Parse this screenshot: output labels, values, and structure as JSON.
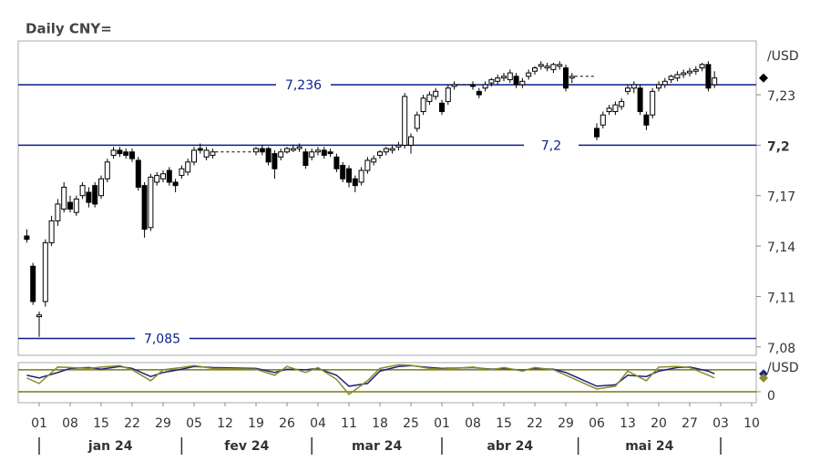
{
  "chart_data": {
    "type": "candlestick",
    "title": "Daily CNY=",
    "unit": "/USD",
    "ylim": [
      7.075,
      7.262
    ],
    "yticks": [
      {
        "value": 7.08,
        "label": "7,08"
      },
      {
        "value": 7.11,
        "label": "7,11"
      },
      {
        "value": 7.14,
        "label": "7,14"
      },
      {
        "value": 7.17,
        "label": "7,17"
      },
      {
        "value": 7.2,
        "label": "7,2",
        "bold": true
      },
      {
        "value": 7.23,
        "label": "7,23"
      }
    ],
    "lines": [
      {
        "value": 7.236,
        "label": "7,236"
      },
      {
        "value": 7.2,
        "label": "7,2"
      },
      {
        "value": 7.085,
        "label": "7,085"
      }
    ],
    "line_color": "#0b1e8c",
    "up_color": "#ffffff",
    "down_color": "#000000",
    "x": [
      "2023-12-28",
      "2023-12-29",
      "2024-01-01",
      "2024-01-02",
      "2024-01-03",
      "2024-01-04",
      "2024-01-05",
      "2024-01-08",
      "2024-01-09",
      "2024-01-10",
      "2024-01-11",
      "2024-01-12",
      "2024-01-15",
      "2024-01-16",
      "2024-01-17",
      "2024-01-18",
      "2024-01-19",
      "2024-01-22",
      "2024-01-23",
      "2024-01-24",
      "2024-01-25",
      "2024-01-26",
      "2024-01-29",
      "2024-01-30",
      "2024-01-31",
      "2024-02-01",
      "2024-02-02",
      "2024-02-05",
      "2024-02-06",
      "2024-02-07",
      "2024-02-08",
      "2024-02-09",
      "2024-02-12",
      "2024-02-13",
      "2024-02-14",
      "2024-02-15",
      "2024-02-16",
      "2024-02-19",
      "2024-02-20",
      "2024-02-21",
      "2024-02-22",
      "2024-02-23",
      "2024-02-26",
      "2024-02-27",
      "2024-02-28",
      "2024-02-29",
      "2024-03-01",
      "2024-03-04",
      "2024-03-05",
      "2024-03-06",
      "2024-03-07",
      "2024-03-08",
      "2024-03-11",
      "2024-03-12",
      "2024-03-13",
      "2024-03-14",
      "2024-03-15",
      "2024-03-18",
      "2024-03-19",
      "2024-03-20",
      "2024-03-21",
      "2024-03-22",
      "2024-03-25",
      "2024-03-26",
      "2024-03-27",
      "2024-03-28",
      "2024-03-29",
      "2024-04-01",
      "2024-04-02",
      "2024-04-03",
      "2024-04-04",
      "2024-04-05",
      "2024-04-08",
      "2024-04-09",
      "2024-04-10",
      "2024-04-11",
      "2024-04-12",
      "2024-04-15",
      "2024-04-16",
      "2024-04-17",
      "2024-04-18",
      "2024-04-19",
      "2024-04-22",
      "2024-04-23",
      "2024-04-24",
      "2024-04-25",
      "2024-04-26",
      "2024-04-29",
      "2024-04-30",
      "2024-05-01",
      "2024-05-02",
      "2024-05-03",
      "2024-05-06",
      "2024-05-07",
      "2024-05-08",
      "2024-05-09",
      "2024-05-10",
      "2024-05-13",
      "2024-05-14",
      "2024-05-15",
      "2024-05-16",
      "2024-05-17",
      "2024-05-20",
      "2024-05-21",
      "2024-05-22",
      "2024-05-23",
      "2024-05-24",
      "2024-05-27",
      "2024-05-28",
      "2024-05-29",
      "2024-05-30",
      "2024-05-31"
    ],
    "ohlc": [
      [
        7.146,
        7.15,
        7.142,
        7.144
      ],
      [
        7.128,
        7.13,
        7.105,
        7.107
      ],
      [
        7.098,
        7.101,
        7.086,
        7.099
      ],
      [
        7.107,
        7.144,
        7.104,
        7.142
      ],
      [
        7.142,
        7.158,
        7.14,
        7.155
      ],
      [
        7.155,
        7.168,
        7.152,
        7.165
      ],
      [
        7.162,
        7.178,
        7.16,
        7.175
      ],
      [
        7.166,
        7.17,
        7.16,
        7.162
      ],
      [
        7.16,
        7.17,
        7.158,
        7.168
      ],
      [
        7.17,
        7.178,
        7.168,
        7.176
      ],
      [
        7.172,
        7.175,
        7.163,
        7.166
      ],
      [
        7.176,
        7.178,
        7.163,
        7.165
      ],
      [
        7.17,
        7.182,
        7.168,
        7.18
      ],
      [
        7.18,
        7.192,
        7.178,
        7.19
      ],
      [
        7.194,
        7.199,
        7.192,
        7.197
      ],
      [
        7.197,
        7.199,
        7.193,
        7.195
      ],
      [
        7.196,
        7.198,
        7.192,
        7.194
      ],
      [
        7.196,
        7.198,
        7.19,
        7.192
      ],
      [
        7.191,
        7.193,
        7.173,
        7.175
      ],
      [
        7.176,
        7.178,
        7.145,
        7.15
      ],
      [
        7.151,
        7.183,
        7.149,
        7.181
      ],
      [
        7.178,
        7.184,
        7.176,
        7.182
      ],
      [
        7.18,
        7.185,
        7.178,
        7.183
      ],
      [
        7.185,
        7.187,
        7.176,
        7.178
      ],
      [
        7.178,
        7.18,
        7.172,
        7.176
      ],
      [
        7.182,
        7.188,
        7.18,
        7.186
      ],
      [
        7.184,
        7.192,
        7.182,
        7.19
      ],
      [
        7.19,
        7.199,
        7.188,
        7.197
      ],
      [
        7.198,
        7.201,
        7.195,
        7.197
      ],
      [
        7.193,
        7.199,
        7.191,
        7.197
      ],
      [
        7.194,
        7.198,
        7.192,
        7.196
      ],
      null,
      null,
      null,
      null,
      null,
      null,
      [
        7.196,
        7.199,
        7.194,
        7.198
      ],
      [
        7.198,
        7.2,
        7.194,
        7.196
      ],
      [
        7.198,
        7.199,
        7.188,
        7.19
      ],
      [
        7.195,
        7.197,
        7.18,
        7.186
      ],
      [
        7.193,
        7.198,
        7.191,
        7.196
      ],
      [
        7.196,
        7.199,
        7.195,
        7.198
      ],
      [
        7.197,
        7.2,
        7.196,
        7.198
      ],
      [
        7.198,
        7.201,
        7.196,
        7.199
      ],
      [
        7.196,
        7.198,
        7.186,
        7.188
      ],
      [
        7.193,
        7.198,
        7.191,
        7.196
      ],
      [
        7.196,
        7.199,
        7.194,
        7.197
      ],
      [
        7.197,
        7.199,
        7.192,
        7.194
      ],
      [
        7.196,
        7.198,
        7.193,
        7.195
      ],
      [
        7.193,
        7.195,
        7.184,
        7.186
      ],
      [
        7.188,
        7.19,
        7.178,
        7.18
      ],
      [
        7.186,
        7.188,
        7.175,
        7.178
      ],
      [
        7.18,
        7.182,
        7.172,
        7.176
      ],
      [
        7.178,
        7.187,
        7.176,
        7.185
      ],
      [
        7.185,
        7.193,
        7.183,
        7.191
      ],
      [
        7.19,
        7.194,
        7.188,
        7.192
      ],
      [
        7.194,
        7.197,
        7.192,
        7.196
      ],
      [
        7.196,
        7.199,
        7.194,
        7.198
      ],
      [
        7.197,
        7.2,
        7.195,
        7.198
      ],
      [
        7.199,
        7.202,
        7.197,
        7.2
      ],
      [
        7.2,
        7.231,
        7.198,
        7.229
      ],
      [
        7.2,
        7.207,
        7.195,
        7.205
      ],
      [
        7.21,
        7.22,
        7.208,
        7.218
      ],
      [
        7.22,
        7.23,
        7.218,
        7.228
      ],
      [
        7.226,
        7.232,
        7.224,
        7.23
      ],
      [
        7.229,
        7.234,
        7.227,
        7.232
      ],
      [
        7.225,
        7.227,
        7.218,
        7.22
      ],
      [
        7.226,
        7.236,
        7.224,
        7.234
      ],
      [
        7.235,
        7.238,
        7.233,
        7.236
      ],
      null,
      null,
      [
        7.236,
        7.238,
        7.233,
        7.235
      ],
      [
        7.232,
        7.234,
        7.228,
        7.23
      ],
      [
        7.234,
        7.238,
        7.232,
        7.236
      ],
      [
        7.237,
        7.24,
        7.235,
        7.239
      ],
      [
        7.238,
        7.242,
        7.236,
        7.24
      ],
      [
        7.24,
        7.243,
        7.238,
        7.241
      ],
      [
        7.239,
        7.245,
        7.237,
        7.243
      ],
      [
        7.241,
        7.243,
        7.234,
        7.236
      ],
      [
        7.236,
        7.24,
        7.234,
        7.238
      ],
      [
        7.241,
        7.245,
        7.239,
        7.243
      ],
      [
        7.244,
        7.247,
        7.242,
        7.246
      ],
      [
        7.247,
        7.25,
        7.245,
        7.248
      ],
      [
        7.246,
        7.249,
        7.244,
        7.247
      ],
      [
        7.245,
        7.249,
        7.243,
        7.248
      ],
      [
        7.247,
        7.25,
        7.245,
        7.248
      ],
      [
        7.246,
        7.248,
        7.232,
        7.234
      ],
      [
        7.24,
        7.243,
        7.237,
        7.241
      ],
      null,
      null,
      null,
      [
        7.21,
        7.213,
        7.203,
        7.205
      ],
      [
        7.212,
        7.22,
        7.21,
        7.218
      ],
      [
        7.22,
        7.224,
        7.218,
        7.222
      ],
      [
        7.22,
        7.226,
        7.218,
        7.224
      ],
      [
        7.223,
        7.228,
        7.221,
        7.226
      ],
      [
        7.232,
        7.236,
        7.23,
        7.234
      ],
      [
        7.234,
        7.238,
        7.231,
        7.236
      ],
      [
        7.234,
        7.236,
        7.218,
        7.22
      ],
      [
        7.218,
        7.22,
        7.209,
        7.212
      ],
      [
        7.218,
        7.234,
        7.216,
        7.232
      ],
      [
        7.234,
        7.238,
        7.232,
        7.236
      ],
      [
        7.236,
        7.24,
        7.234,
        7.238
      ],
      [
        7.239,
        7.242,
        7.237,
        7.241
      ],
      [
        7.24,
        7.244,
        7.238,
        7.242
      ],
      [
        7.242,
        7.245,
        7.24,
        7.243
      ],
      [
        7.243,
        7.246,
        7.241,
        7.244
      ],
      [
        7.244,
        7.247,
        7.242,
        7.245
      ],
      [
        7.246,
        7.249,
        7.244,
        7.248
      ],
      [
        7.248,
        7.25,
        7.232,
        7.234
      ],
      [
        7.236,
        7.244,
        7.234,
        7.24
      ]
    ],
    "xticks": [
      {
        "value": "2024-01-01",
        "label": "01"
      },
      {
        "value": "2024-01-08",
        "label": "08"
      },
      {
        "value": "2024-01-15",
        "label": "15"
      },
      {
        "value": "2024-01-22",
        "label": "22"
      },
      {
        "value": "2024-01-29",
        "label": "29"
      },
      {
        "value": "2024-02-05",
        "label": "05"
      },
      {
        "value": "2024-02-12",
        "label": "12"
      },
      {
        "value": "2024-02-19",
        "label": "19"
      },
      {
        "value": "2024-02-26",
        "label": "26"
      },
      {
        "value": "2024-03-04",
        "label": "04"
      },
      {
        "value": "2024-03-11",
        "label": "11"
      },
      {
        "value": "2024-03-18",
        "label": "18"
      },
      {
        "value": "2024-03-25",
        "label": "25"
      },
      {
        "value": "2024-04-01",
        "label": "01"
      },
      {
        "value": "2024-04-08",
        "label": "08"
      },
      {
        "value": "2024-04-15",
        "label": "15"
      },
      {
        "value": "2024-04-22",
        "label": "22"
      },
      {
        "value": "2024-04-29",
        "label": "29"
      },
      {
        "value": "2024-05-06",
        "label": "06"
      },
      {
        "value": "2024-05-13",
        "label": "13"
      },
      {
        "value": "2024-05-20",
        "label": "20"
      },
      {
        "value": "2024-05-27",
        "label": "27"
      },
      {
        "value": "2024-06-03",
        "label": "03"
      },
      {
        "value": "2024-06-10",
        "label": "10"
      }
    ],
    "months": [
      "jan 24",
      "fev 24",
      "mar 24",
      "abr 24",
      "mai 24"
    ],
    "oscillator": {
      "unit": "/USD",
      "ylim": [
        -40,
        106
      ],
      "yticks": [
        0
      ],
      "levels": [
        80,
        0
      ],
      "level_color": "#7a7a10",
      "x": [
        "2023-12-28",
        "2024-01-01",
        "2024-01-04",
        "2024-01-08",
        "2024-01-11",
        "2024-01-15",
        "2024-01-18",
        "2024-01-22",
        "2024-01-25",
        "2024-01-29",
        "2024-02-01",
        "2024-02-05",
        "2024-02-08",
        "2024-02-19",
        "2024-02-22",
        "2024-02-26",
        "2024-02-29",
        "2024-03-04",
        "2024-03-07",
        "2024-03-11",
        "2024-03-14",
        "2024-03-18",
        "2024-03-21",
        "2024-03-25",
        "2024-03-28",
        "2024-04-01",
        "2024-04-08",
        "2024-04-11",
        "2024-04-15",
        "2024-04-18",
        "2024-04-22",
        "2024-04-25",
        "2024-04-29",
        "2024-05-06",
        "2024-05-09",
        "2024-05-13",
        "2024-05-16",
        "2024-05-20",
        "2024-05-23",
        "2024-05-27",
        "2024-05-30",
        "2024-05-31"
      ],
      "series": [
        {
          "color": "#1a237e",
          "values": [
            60,
            50,
            70,
            85,
            88,
            82,
            92,
            85,
            55,
            70,
            82,
            92,
            88,
            85,
            70,
            82,
            80,
            85,
            60,
            20,
            30,
            75,
            92,
            95,
            88,
            85,
            88,
            82,
            85,
            78,
            85,
            82,
            70,
            20,
            25,
            60,
            55,
            75,
            88,
            90,
            75,
            65
          ]
        },
        {
          "color": "#8b8b2a",
          "values": [
            50,
            30,
            90,
            88,
            85,
            90,
            95,
            80,
            40,
            80,
            88,
            95,
            85,
            82,
            60,
            92,
            70,
            88,
            45,
            -10,
            40,
            85,
            98,
            96,
            85,
            82,
            90,
            80,
            88,
            75,
            88,
            80,
            60,
            10,
            20,
            75,
            40,
            90,
            92,
            88,
            60,
            50
          ]
        }
      ]
    }
  }
}
